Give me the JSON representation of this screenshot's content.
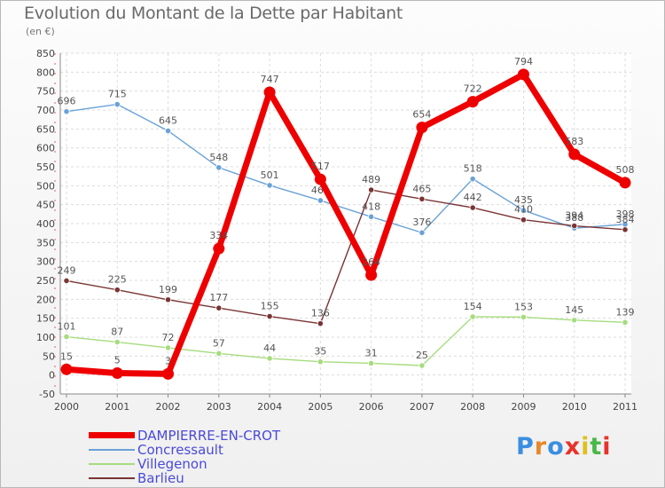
{
  "title": "Evolution du Montant de la Dette par Habitant",
  "unit_label": "(en €)",
  "logo": {
    "text": "Proxiti",
    "colors": [
      "#3a8ee0",
      "#e8872a",
      "#3a8ee0",
      "#e8322a",
      "#e0c020",
      "#48b848",
      "#e8322a"
    ]
  },
  "chart_data": {
    "type": "line",
    "title": "Evolution du Montant de la Dette par Habitant",
    "ylabel": "(en €)",
    "xlabel": "",
    "ylim": [
      -50,
      850
    ],
    "y_ticks": [
      -50,
      0,
      50,
      100,
      150,
      200,
      250,
      300,
      350,
      400,
      450,
      500,
      550,
      600,
      650,
      700,
      750,
      800,
      850
    ],
    "x": [
      "2000",
      "2001",
      "2002",
      "2003",
      "2004",
      "2005",
      "2006",
      "2007",
      "2008",
      "2009",
      "2010",
      "2011"
    ],
    "grid": true,
    "legend_position": "bottom-left",
    "series": [
      {
        "name": "DAMPIERRE-EN-CROT",
        "color": "#ee0000",
        "values": [
          15,
          5,
          3,
          334,
          747,
          517,
          264,
          654,
          722,
          794,
          583,
          508
        ]
      },
      {
        "name": "Concressault",
        "color": "#6aa2d6",
        "values": [
          696,
          715,
          645,
          548,
          501,
          461,
          418,
          376,
          518,
          435,
          388,
          398
        ]
      },
      {
        "name": "Villegenon",
        "color": "#a6dc7e",
        "values": [
          101,
          87,
          72,
          57,
          44,
          35,
          31,
          25,
          154,
          153,
          145,
          139
        ]
      },
      {
        "name": "Barlieu",
        "color": "#7a3434",
        "values": [
          249,
          225,
          199,
          177,
          155,
          136,
          489,
          465,
          442,
          410,
          394,
          384
        ]
      }
    ]
  }
}
